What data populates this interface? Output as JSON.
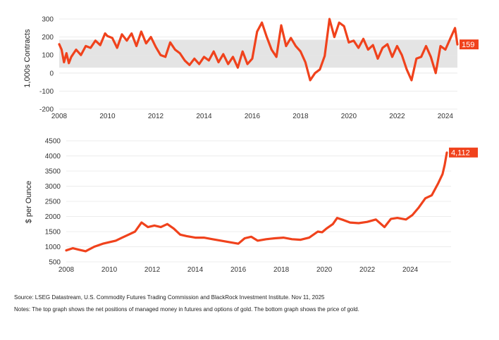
{
  "source": "Source: LSEG Datastream, U.S. Commodity Futures Trading Commission and BlackRock Investment Institute. Nov 11, 2025",
  "notes": "Notes: The top graph shows the net positions of managed money in futures and options of gold. The bottom graph shows the price of gold.",
  "colors": {
    "line": "#f0421c",
    "band": "#e4e4e4",
    "label_bg": "#f0421c"
  },
  "chart_data": [
    {
      "type": "line",
      "ylabel": "1,000s Contracts",
      "xlim": [
        2008,
        2024.5
      ],
      "ylim": [
        -200,
        300
      ],
      "xticks": [
        2008,
        2010,
        2012,
        2014,
        2016,
        2018,
        2020,
        2022,
        2024
      ],
      "yticks": [
        -200,
        -100,
        0,
        100,
        200,
        300
      ],
      "yticklabels": [
        "-200",
        "-100",
        "0",
        "100",
        "200",
        "300"
      ],
      "band": [
        30,
        185
      ],
      "end_label": "159",
      "series": [
        {
          "x": [
            2008.0,
            2008.1,
            2008.2,
            2008.3,
            2008.4,
            2008.5,
            2008.7,
            2008.9,
            2009.1,
            2009.3,
            2009.5,
            2009.7,
            2009.9,
            2010.0,
            2010.2,
            2010.4,
            2010.6,
            2010.8,
            2011.0,
            2011.2,
            2011.4,
            2011.6,
            2011.8,
            2012.0,
            2012.2,
            2012.4,
            2012.6,
            2012.8,
            2013.0,
            2013.2,
            2013.4,
            2013.6,
            2013.8,
            2014.0,
            2014.2,
            2014.4,
            2014.6,
            2014.8,
            2015.0,
            2015.2,
            2015.4,
            2015.6,
            2015.8,
            2016.0,
            2016.2,
            2016.4,
            2016.6,
            2016.8,
            2017.0,
            2017.2,
            2017.4,
            2017.6,
            2017.8,
            2018.0,
            2018.2,
            2018.4,
            2018.6,
            2018.8,
            2019.0,
            2019.2,
            2019.4,
            2019.6,
            2019.8,
            2020.0,
            2020.2,
            2020.4,
            2020.6,
            2020.8,
            2021.0,
            2021.2,
            2021.4,
            2021.6,
            2021.8,
            2022.0,
            2022.2,
            2022.4,
            2022.6,
            2022.8,
            2023.0,
            2023.2,
            2023.4,
            2023.6,
            2023.8,
            2024.0,
            2024.2,
            2024.4,
            2024.5
          ],
          "values": [
            160,
            130,
            60,
            110,
            55,
            90,
            130,
            100,
            150,
            140,
            180,
            155,
            220,
            205,
            195,
            140,
            215,
            180,
            220,
            150,
            230,
            165,
            200,
            145,
            100,
            90,
            170,
            130,
            110,
            70,
            45,
            80,
            50,
            90,
            70,
            120,
            60,
            105,
            50,
            90,
            30,
            120,
            50,
            80,
            230,
            280,
            200,
            130,
            90,
            265,
            150,
            195,
            150,
            120,
            60,
            -40,
            0,
            20,
            95,
            300,
            200,
            280,
            260,
            170,
            180,
            140,
            190,
            130,
            155,
            80,
            140,
            160,
            90,
            150,
            100,
            20,
            -40,
            80,
            90,
            150,
            90,
            0,
            150,
            130,
            190,
            250,
            159
          ]
        }
      ]
    },
    {
      "type": "line",
      "ylabel": "$ per Ounce",
      "xlim": [
        2008,
        2025.7
      ],
      "ylim": [
        500,
        4500
      ],
      "xticks": [
        2008,
        2010,
        2012,
        2014,
        2016,
        2018,
        2020,
        2022,
        2024
      ],
      "yticks": [
        500,
        1000,
        1500,
        2000,
        2500,
        3000,
        3500,
        4000,
        4500
      ],
      "yticklabels": [
        "500",
        "1000",
        "1500",
        "2000",
        "2500",
        "3000",
        "3500",
        "4000",
        "4500"
      ],
      "end_label": "4,112",
      "series": [
        {
          "x": [
            2008.0,
            2008.3,
            2008.6,
            2008.9,
            2009.3,
            2009.7,
            2010.0,
            2010.3,
            2010.6,
            2010.9,
            2011.2,
            2011.5,
            2011.8,
            2012.1,
            2012.4,
            2012.7,
            2013.0,
            2013.3,
            2013.6,
            2014.0,
            2014.4,
            2014.8,
            2015.2,
            2015.6,
            2016.0,
            2016.3,
            2016.6,
            2016.9,
            2017.3,
            2017.7,
            2018.1,
            2018.5,
            2018.9,
            2019.3,
            2019.7,
            2019.9,
            2020.1,
            2020.4,
            2020.6,
            2020.9,
            2021.2,
            2021.6,
            2022.0,
            2022.4,
            2022.8,
            2023.1,
            2023.4,
            2023.8,
            2024.1,
            2024.4,
            2024.7,
            2025.0,
            2025.3,
            2025.5,
            2025.6,
            2025.7
          ],
          "values": [
            880,
            950,
            900,
            850,
            1000,
            1100,
            1150,
            1200,
            1300,
            1400,
            1500,
            1800,
            1650,
            1700,
            1650,
            1750,
            1600,
            1400,
            1350,
            1300,
            1300,
            1250,
            1200,
            1150,
            1100,
            1280,
            1330,
            1200,
            1250,
            1280,
            1300,
            1250,
            1230,
            1300,
            1500,
            1480,
            1600,
            1750,
            1950,
            1880,
            1800,
            1780,
            1820,
            1900,
            1650,
            1920,
            1950,
            1900,
            2050,
            2300,
            2600,
            2700,
            3100,
            3400,
            3700,
            4112
          ]
        }
      ]
    }
  ]
}
